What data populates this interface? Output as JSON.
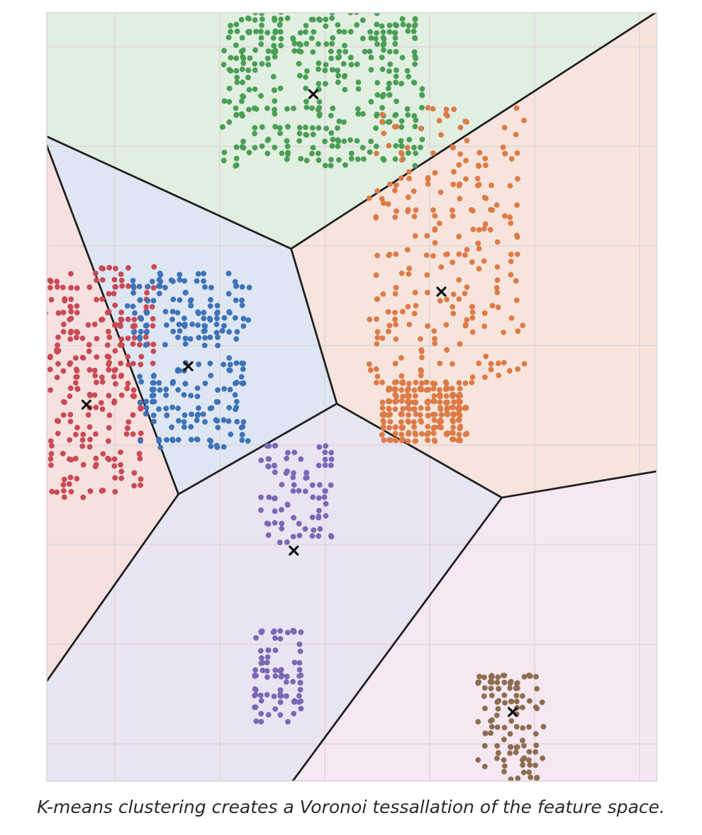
{
  "caption": "K-means clustering creates a Voronoi tessallation of the feature space.",
  "chart_data": {
    "type": "scatter",
    "title": "",
    "xlabel": "",
    "ylabel": "",
    "xlim": [
      0,
      1
    ],
    "ylim": [
      0,
      1
    ],
    "grid": true,
    "legend": "none",
    "tick_labels_shown": false,
    "centroid_marker": "x",
    "voronoi_edges": true,
    "clusters": [
      {
        "color": "#c94a55",
        "region_color": "#f6e1df",
        "centroid": [
          0.065,
          0.49
        ],
        "point_count": 260,
        "boxes": [
          [
            0.0,
            0.18,
            0.54,
            0.67
          ],
          [
            0.0,
            0.16,
            0.37,
            0.55
          ]
        ]
      },
      {
        "color": "#3d73b8",
        "region_color": "#dfe6f3",
        "centroid": [
          0.232,
          0.54
        ],
        "point_count": 240,
        "boxes": [
          [
            0.13,
            0.33,
            0.57,
            0.66
          ],
          [
            0.15,
            0.33,
            0.43,
            0.55
          ]
        ]
      },
      {
        "color": "#4a9e55",
        "region_color": "#e1efe1",
        "centroid": [
          0.437,
          0.894
        ],
        "point_count": 360,
        "boxes": [
          [
            0.29,
            0.62,
            0.8,
            1.0
          ]
        ]
      },
      {
        "color": "#dd7b47",
        "region_color": "#f7e5dd",
        "centroid": [
          0.647,
          0.637
        ],
        "point_count": 480,
        "boxes": [
          [
            0.53,
            0.78,
            0.52,
            0.88
          ],
          [
            0.55,
            0.69,
            0.44,
            0.52
          ]
        ]
      },
      {
        "color": "#7a68b5",
        "region_color": "#e8e4f2",
        "centroid": [
          0.405,
          0.3
        ],
        "point_count": 160,
        "boxes": [
          [
            0.35,
            0.47,
            0.31,
            0.44
          ],
          [
            0.34,
            0.42,
            0.08,
            0.2
          ]
        ]
      },
      {
        "color": "#8c6d50",
        "region_color": "#f6e8f3",
        "centroid": [
          0.764,
          0.09
        ],
        "point_count": 110,
        "boxes": [
          [
            0.71,
            0.81,
            0.0,
            0.14
          ]
        ]
      }
    ]
  }
}
